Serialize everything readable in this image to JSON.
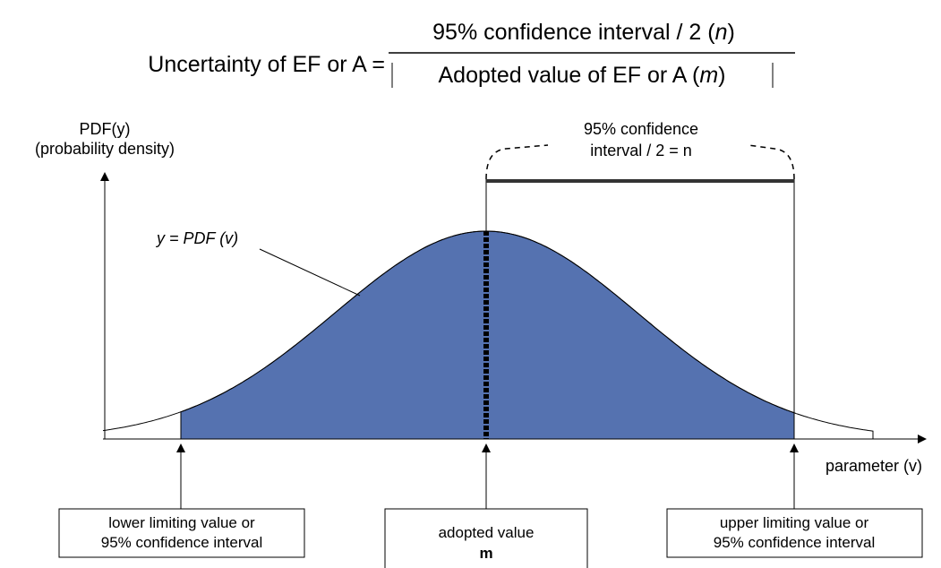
{
  "formula": {
    "lhs": "Uncertainty of EF or A =",
    "numerator": [
      "95% confidence interval / 2 (",
      "n",
      ")"
    ],
    "denominator": [
      "Adopted value of EF or A (",
      "m",
      ")"
    ]
  },
  "y_axis": {
    "label": [
      "PDF(y)",
      "(probability density)"
    ]
  },
  "x_axis": {
    "label": "parameter (v)"
  },
  "curve_label": "y = PDF (v)",
  "interval_label": [
    "95% confidence",
    "interval / 2 = n"
  ],
  "boxes": {
    "lower": [
      "lower limiting value or",
      "95% confidence interval"
    ],
    "adopted": [
      "adopted value",
      "m"
    ],
    "upper": [
      "upper limiting value or",
      "95% confidence interval"
    ]
  }
}
